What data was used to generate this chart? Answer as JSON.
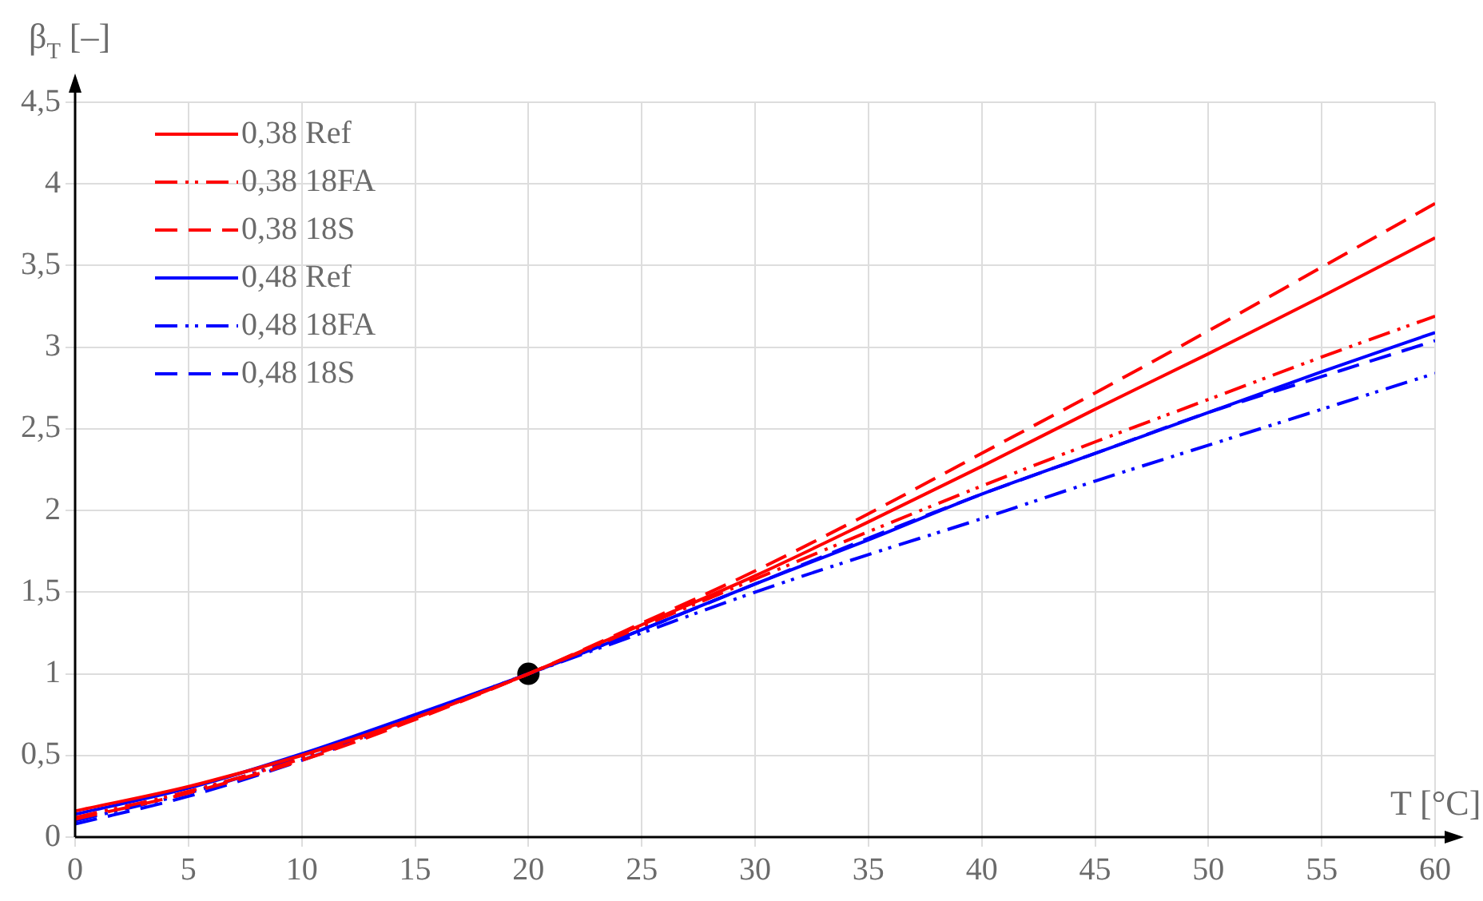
{
  "chart_data": {
    "type": "line",
    "xlabel": "T [°C]",
    "ylabel": "β$_{T}$ [–]",
    "x": [
      0,
      5,
      10,
      15,
      20,
      25,
      30,
      35,
      40,
      45,
      50,
      55,
      60
    ],
    "series": [
      {
        "name": "0,38 Ref",
        "color": "#ff0000",
        "line_style": "solid",
        "values": [
          0.16,
          0.31,
          0.5,
          0.73,
          1.0,
          1.3,
          1.6,
          1.93,
          2.27,
          2.62,
          2.96,
          3.31,
          3.67
        ]
      },
      {
        "name": "0,38 18FA",
        "color": "#ff0000",
        "line_style": "dotted",
        "values": [
          0.12,
          0.28,
          0.48,
          0.73,
          1.0,
          1.29,
          1.58,
          1.87,
          2.15,
          2.42,
          2.68,
          2.94,
          3.19
        ]
      },
      {
        "name": "0,38 18S",
        "color": "#ff0000",
        "line_style": "dashed",
        "values": [
          0.11,
          0.27,
          0.47,
          0.72,
          1.0,
          1.31,
          1.63,
          1.98,
          2.35,
          2.72,
          3.1,
          3.49,
          3.88
        ]
      },
      {
        "name": "0,48 Ref",
        "color": "#0000ff",
        "line_style": "solid",
        "values": [
          0.14,
          0.3,
          0.51,
          0.75,
          1.0,
          1.27,
          1.55,
          1.82,
          2.1,
          2.35,
          2.6,
          2.85,
          3.09
        ]
      },
      {
        "name": "0,48 18FA",
        "color": "#0000ff",
        "line_style": "dotted",
        "values": [
          0.1,
          0.27,
          0.49,
          0.74,
          1.0,
          1.25,
          1.5,
          1.73,
          1.95,
          2.18,
          2.4,
          2.62,
          2.84
        ]
      },
      {
        "name": "0,48 18S",
        "color": "#0000ff",
        "line_style": "dashed",
        "values": [
          0.08,
          0.25,
          0.47,
          0.73,
          1.0,
          1.27,
          1.55,
          1.83,
          2.1,
          2.35,
          2.6,
          2.82,
          3.04
        ]
      },
      {
        "type": "scatter",
        "color": "#000000",
        "marker": "circle",
        "x": [
          20
        ],
        "values": [
          1.0
        ]
      }
    ],
    "xlim": [
      0,
      60
    ],
    "xticks": [
      0,
      5,
      10,
      15,
      20,
      25,
      30,
      35,
      40,
      45,
      50,
      55,
      60
    ],
    "ylim": [
      0,
      4.5
    ],
    "yticks": [
      0,
      {
        "value": 0.5,
        "label": "0,5"
      },
      1,
      {
        "value": 1.5,
        "label": "1,5"
      },
      2,
      {
        "value": 2.5,
        "label": "2,5"
      },
      3,
      {
        "value": 3.5,
        "label": "3,5"
      },
      4,
      {
        "value": 4.5,
        "label": "4,5"
      }
    ],
    "grid": true,
    "legend": "top left",
    "marker": "none"
  }
}
